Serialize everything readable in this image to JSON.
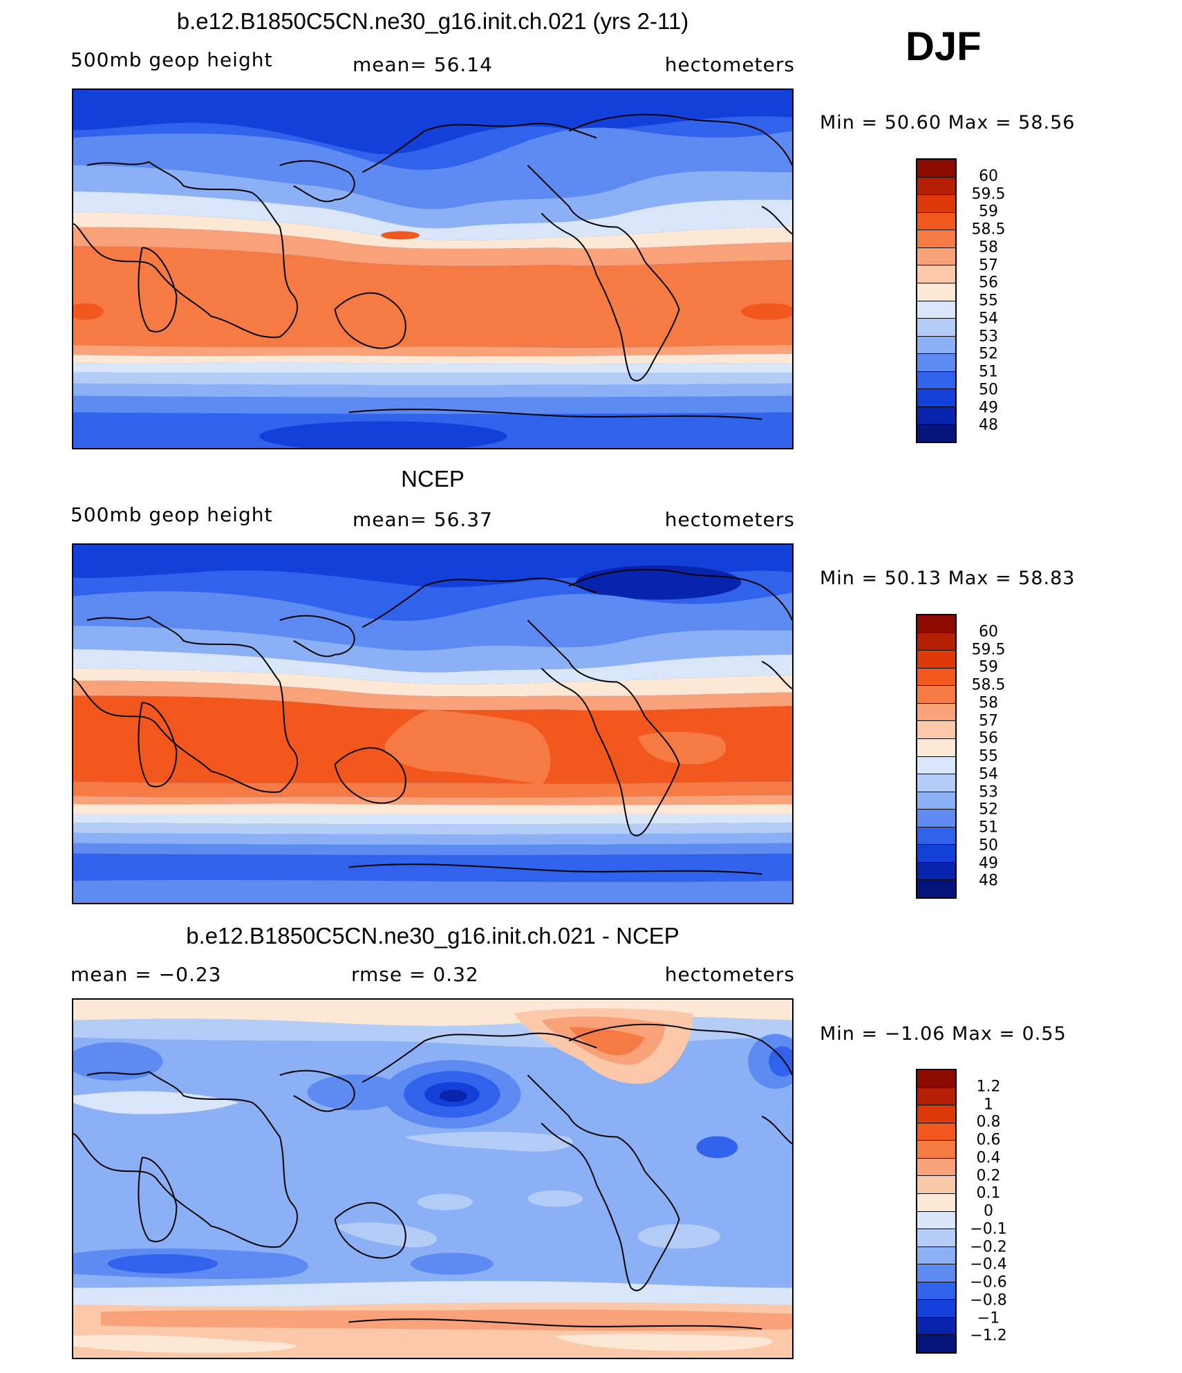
{
  "season": "DJF",
  "panels": [
    {
      "title": "b.e12.B1850C5CN.ne30_g16.init.ch.021 (yrs 2-11)",
      "left_label": "500mb  geop  height",
      "center_label": "mean=   56.14",
      "units": "hectometers",
      "minmax": "Min  =    50.60  Max  =    58.56"
    },
    {
      "title": "NCEP",
      "left_label": "500mb  geop  height",
      "center_label": "mean=   56.37",
      "units": "hectometers",
      "minmax": "Min  =    50.13  Max  =    58.83"
    },
    {
      "title": "b.e12.B1850C5CN.ne30_g16.init.ch.021 - NCEP",
      "left_label": "mean  =    −0.23",
      "center_label": "rmse  =     0.32",
      "units": "hectometers",
      "minmax": "Min  =    −1.06  Max  =     0.55"
    }
  ],
  "colorbar_height": {
    "labels": [
      "60",
      "59.5",
      "59",
      "58.5",
      "58",
      "57",
      "56",
      "55",
      "54",
      "53",
      "52",
      "51",
      "50",
      "49",
      "48"
    ],
    "colors": [
      "#8c0a00",
      "#b51e00",
      "#dc3a0b",
      "#f2571d",
      "#f57a43",
      "#f9a279",
      "#fcc8aa",
      "#fde8d6",
      "#d9e6fa",
      "#b3cdf7",
      "#8cb0f6",
      "#5d8bf2",
      "#3062ec",
      "#1340d8",
      "#0824ad",
      "#03157a"
    ]
  },
  "colorbar_diff": {
    "labels": [
      "1.2",
      "1",
      "0.8",
      "0.6",
      "0.4",
      "0.2",
      "0.1",
      "0",
      "−0.1",
      "−0.2",
      "−0.4",
      "−0.6",
      "−0.8",
      "−1",
      "−1.2"
    ],
    "colors": [
      "#8c0a00",
      "#b51e00",
      "#dc3a0b",
      "#f2571d",
      "#f57a43",
      "#f9a279",
      "#fcc8aa",
      "#fde8d6",
      "#d9e6fa",
      "#b3cdf7",
      "#8cb0f6",
      "#5d8bf2",
      "#3062ec",
      "#1340d8",
      "#0824ad",
      "#03157a"
    ]
  }
}
